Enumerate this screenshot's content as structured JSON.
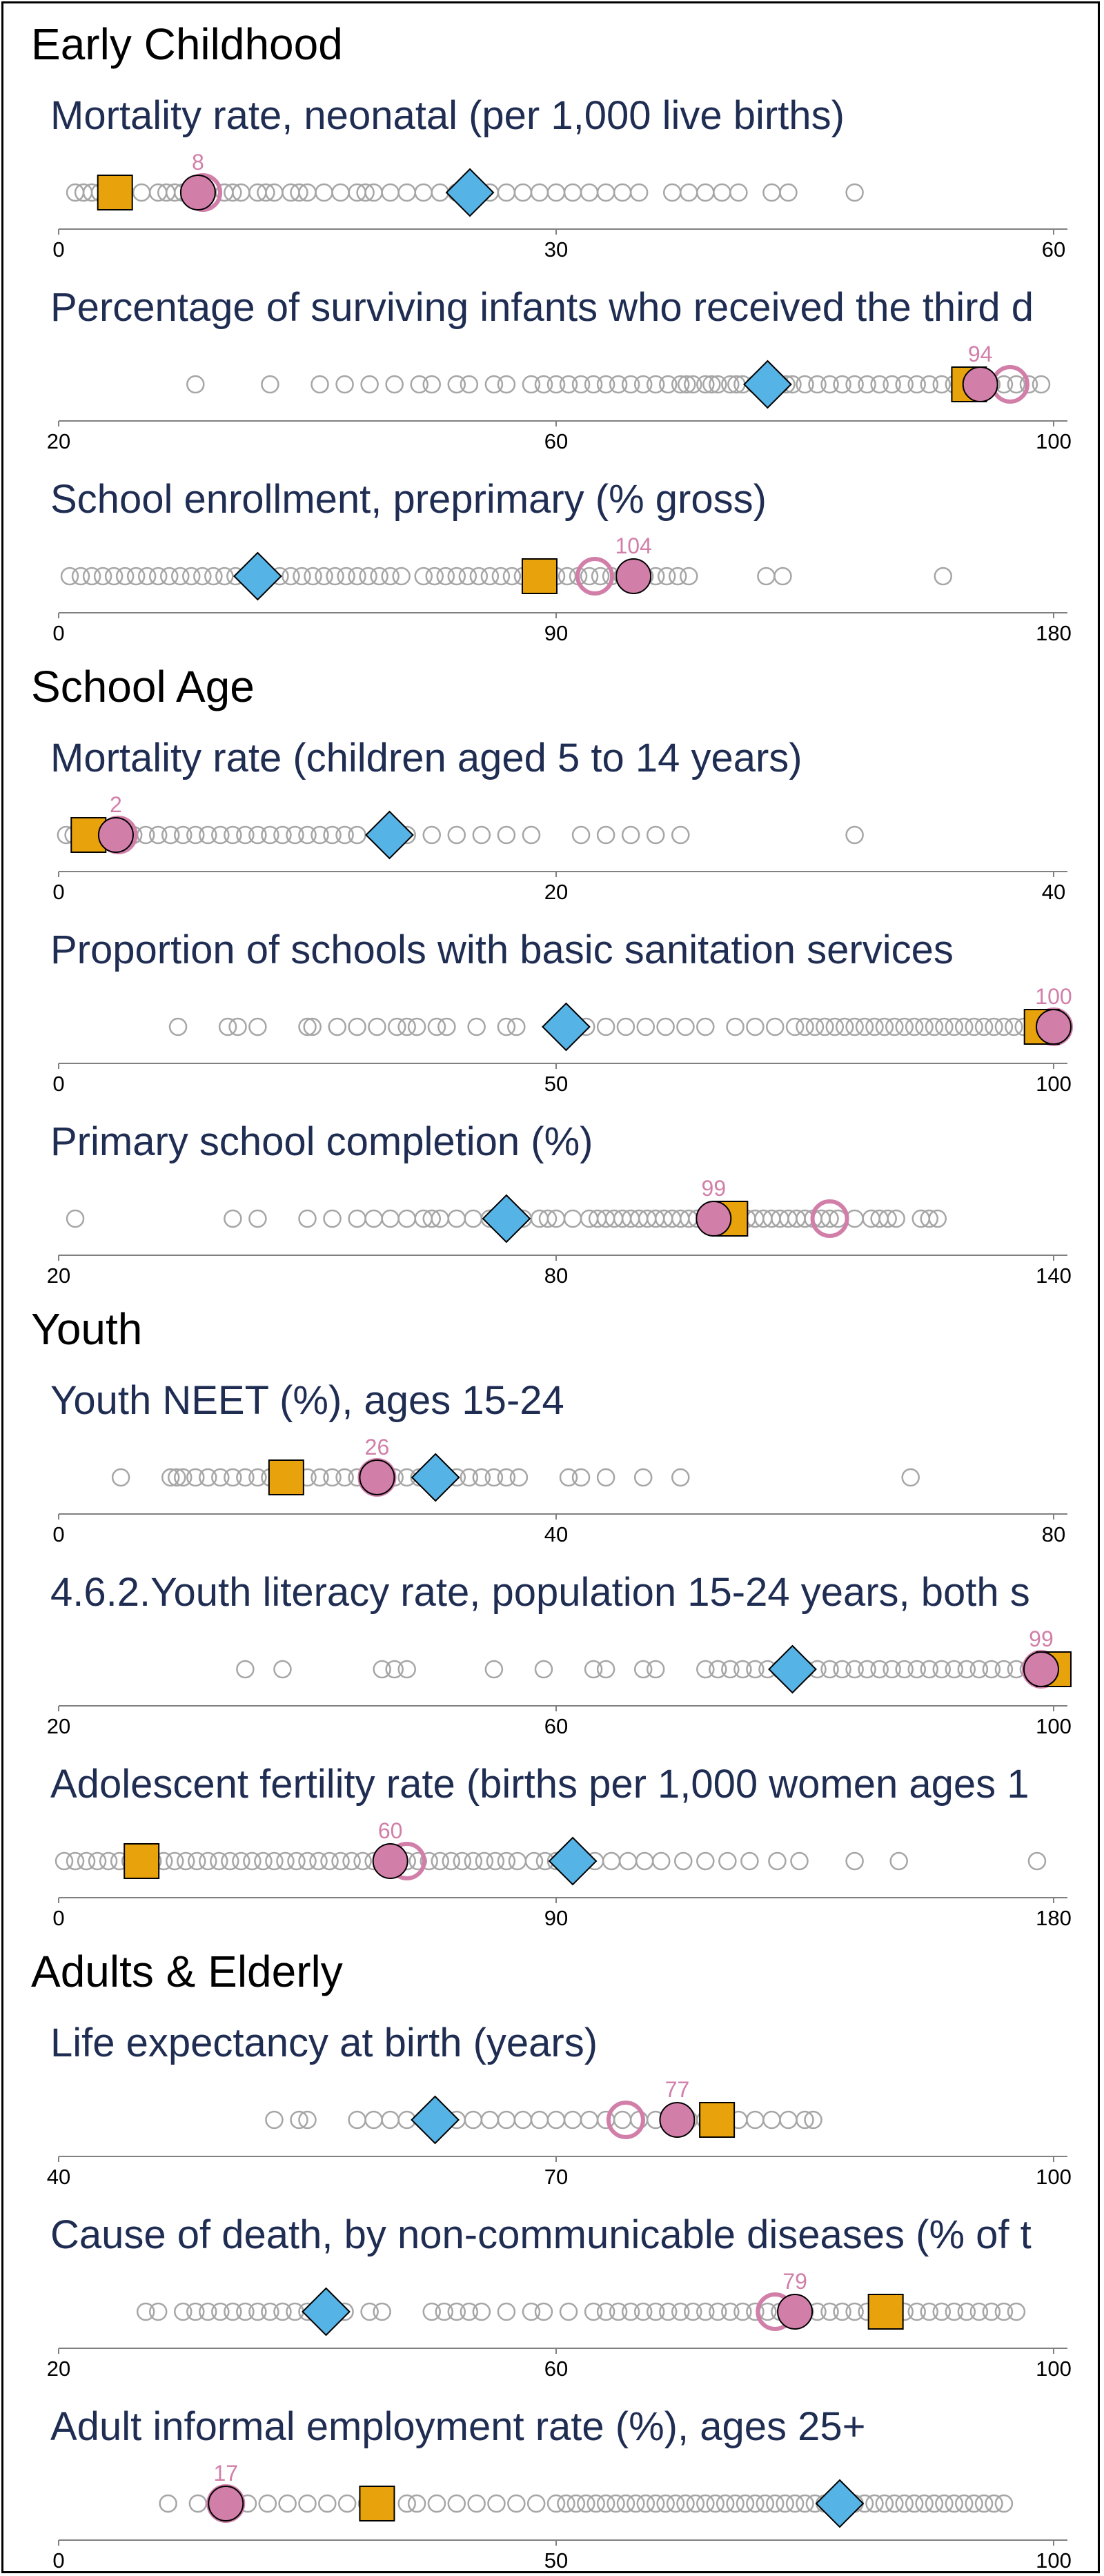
{
  "colors": {
    "dots": "#a6a6a6",
    "country": "#d17fa9",
    "region": "#e8a20c",
    "income": "#56b3e6",
    "title": "#1f2d53",
    "axis": "#808080"
  },
  "chart_data": {
    "type": "scatter",
    "sections": [
      {
        "name": "Early Childhood",
        "panels": [
          {
            "title": "Mortality rate, neonatal (per 1,000 live births)",
            "xlim": [
              0,
              60
            ],
            "ticks": [
              0,
              30,
              60
            ],
            "dots": [
              1,
              1.5,
              2,
              2.5,
              3,
              3.5,
              4,
              5,
              6,
              6.5,
              7,
              7.5,
              8,
              9,
              10,
              10.5,
              11,
              12,
              12.5,
              13,
              14,
              14.5,
              15,
              16,
              17,
              18,
              18.5,
              19,
              20,
              21,
              22,
              23,
              24,
              25,
              26,
              27,
              28,
              29,
              30,
              31,
              32,
              33,
              34,
              35,
              37,
              38,
              39,
              40,
              41,
              43,
              44,
              48
            ],
            "comparator": 8.7,
            "country": 8.4,
            "label": "8",
            "region": 3.4,
            "income": 24.8
          },
          {
            "title": "Percentage of surviving infants who received the third d",
            "xlim": [
              20,
              100
            ],
            "ticks": [
              20,
              60,
              100
            ],
            "dots": [
              31,
              37,
              41,
              43,
              45,
              47,
              49,
              50,
              52,
              53,
              55,
              56,
              58,
              59,
              60,
              61,
              62,
              63,
              64,
              65,
              66,
              67,
              68,
              69,
              70,
              70.5,
              71,
              72,
              72.5,
              73,
              74,
              74.5,
              75,
              76,
              76.5,
              77,
              78,
              78.5,
              79,
              80,
              81,
              82,
              83,
              84,
              85,
              86,
              87,
              88,
              89,
              90,
              91,
              92,
              93,
              94,
              95,
              96,
              97,
              98,
              99
            ],
            "comparator": 96.5,
            "country": 94.1,
            "label": "94",
            "region": 93.2,
            "income": 77
          },
          {
            "title": "School enrollment, preprimary (% gross)",
            "xlim": [
              0,
              180
            ],
            "ticks": [
              0,
              90,
              180
            ],
            "dots": [
              2,
              4,
              6,
              8,
              10,
              12,
              14,
              16,
              18,
              20,
              22,
              24,
              26,
              28,
              30,
              32,
              34,
              36,
              38,
              40,
              42,
              44,
              46,
              48,
              50,
              52,
              54,
              56,
              58,
              60,
              62,
              66,
              68,
              70,
              72,
              74,
              76,
              78,
              80,
              82,
              84,
              86,
              88,
              90,
              92,
              94,
              96,
              98,
              100,
              102,
              104,
              106,
              108,
              110,
              112,
              114,
              128,
              131,
              160
            ],
            "comparator": 97,
            "country": 104,
            "label": "104",
            "region": 87,
            "income": 36
          }
        ]
      },
      {
        "name": "School Age",
        "panels": [
          {
            "title": "Mortality rate (children aged 5 to 14 years)",
            "xlim": [
              0,
              40
            ],
            "ticks": [
              0,
              20,
              40
            ],
            "dots": [
              0.3,
              0.6,
              1,
              1.3,
              1.6,
              2,
              2.3,
              2.6,
              3,
              3.5,
              4,
              4.5,
              5,
              5.5,
              6,
              6.5,
              7,
              7.5,
              8,
              8.5,
              9,
              9.5,
              10,
              10.5,
              11,
              11.5,
              12,
              13,
              14,
              15,
              16,
              17,
              18,
              19,
              21,
              22,
              23,
              24,
              25,
              32
            ],
            "comparator": 2.4,
            "country": 2.3,
            "label": "2",
            "region": 1.2,
            "income": 13.3
          },
          {
            "title": "Proportion of schools with basic sanitation services",
            "xlim": [
              0,
              100
            ],
            "ticks": [
              0,
              50,
              100
            ],
            "dots": [
              12,
              17,
              18,
              20,
              25,
              25.5,
              28,
              30,
              32,
              34,
              35,
              36,
              38,
              39,
              42,
              45,
              46,
              50,
              53,
              55,
              57,
              59,
              61,
              63,
              65,
              68,
              70,
              72,
              74,
              75,
              76,
              77,
              78,
              79,
              80,
              81,
              82,
              83,
              84,
              85,
              86,
              87,
              88,
              89,
              90,
              91,
              92,
              93,
              94,
              95,
              96,
              97,
              98,
              99
            ],
            "comparator": 100,
            "country": 100,
            "label": "100",
            "region": 98.8,
            "income": 51
          },
          {
            "title": "Primary school completion (%)",
            "xlim": [
              20,
              140
            ],
            "ticks": [
              20,
              80,
              140
            ],
            "dots": [
              22,
              41,
              44,
              50,
              53,
              56,
              58,
              60,
              62,
              64,
              65,
              66,
              68,
              70,
              72,
              74,
              76,
              78,
              79,
              80,
              82,
              84,
              85,
              86,
              87,
              88,
              89,
              90,
              91,
              92,
              93,
              94,
              95,
              96,
              97,
              98,
              99,
              100,
              101,
              102,
              103,
              104,
              105,
              106,
              107,
              108,
              109,
              110,
              111,
              112,
              113,
              114,
              116,
              118,
              119,
              120,
              121,
              124,
              125,
              126
            ],
            "comparator": 113,
            "country": 99,
            "label": "99",
            "region": 101,
            "income": 74
          }
        ]
      },
      {
        "name": "Youth",
        "panels": [
          {
            "title": "Youth NEET (%), ages 15-24",
            "xlim": [
              0,
              80
            ],
            "ticks": [
              0,
              40,
              80
            ],
            "dots": [
              5,
              9,
              9.5,
              10,
              11,
              12,
              13,
              14,
              15,
              16,
              17,
              18,
              19,
              20,
              21,
              22,
              23,
              24,
              25,
              26,
              27,
              28,
              29,
              30,
              31,
              32,
              33,
              34,
              35,
              36,
              37,
              41,
              42,
              44,
              47,
              50,
              68.5
            ],
            "comparator": 25.6,
            "country": 25.6,
            "label": "26",
            "region": 18.3,
            "income": 30.3
          },
          {
            "title": "4.6.2.Youth literacy rate, population 15-24 years, both s",
            "xlim": [
              20,
              100
            ],
            "ticks": [
              20,
              60,
              100
            ],
            "dots": [
              35,
              38,
              46,
              47,
              48,
              55,
              59,
              63,
              64,
              67,
              68,
              72,
              73,
              74,
              75,
              76,
              77,
              78,
              79,
              80,
              81,
              82,
              83,
              84,
              85,
              86,
              87,
              88,
              89,
              90,
              91,
              92,
              93,
              94,
              95,
              96,
              97,
              98,
              99
            ],
            "comparator": 99,
            "country": 99,
            "label": "99",
            "region": 100,
            "income": 79
          },
          {
            "title": "Adolescent fertility rate (births per 1,000 women ages 1",
            "xlim": [
              0,
              180
            ],
            "ticks": [
              0,
              90,
              180
            ],
            "dots": [
              1,
              3,
              5,
              7,
              9,
              11,
              13,
              15,
              17,
              19,
              21,
              23,
              25,
              27,
              29,
              31,
              33,
              35,
              37,
              39,
              41,
              43,
              45,
              47,
              49,
              51,
              53,
              55,
              57,
              59,
              61,
              63,
              65,
              67,
              69,
              71,
              73,
              75,
              77,
              79,
              81,
              83,
              86,
              88,
              90,
              93,
              95,
              97,
              100,
              103,
              106,
              109,
              113,
              117,
              121,
              125,
              130,
              134,
              144,
              152,
              177
            ],
            "comparator": 63,
            "country": 60,
            "label": "60",
            "region": 15,
            "income": 93
          }
        ]
      },
      {
        "name": "Adults & Elderly",
        "panels": [
          {
            "title": "Life expectancy at birth (years)",
            "xlim": [
              40,
              100
            ],
            "ticks": [
              40,
              70,
              100
            ],
            "dots": [
              53,
              54.5,
              55,
              58,
              59,
              60,
              61,
              62,
              63,
              64,
              65,
              66,
              67,
              68,
              69,
              70,
              71,
              72,
              73,
              74,
              75,
              76,
              77,
              78,
              79,
              80,
              81,
              82,
              83,
              84,
              85,
              85.5
            ],
            "comparator": 74.2,
            "country": 77.3,
            "label": "77",
            "region": 79.7,
            "income": 62.7
          },
          {
            "title": "Cause of death, by non-communicable diseases (% of t",
            "xlim": [
              20,
              100
            ],
            "ticks": [
              20,
              60,
              100
            ],
            "dots": [
              27,
              28,
              30,
              31,
              32,
              33,
              34,
              35,
              36,
              37,
              38,
              39,
              40,
              41,
              42,
              43,
              45,
              46,
              50,
              51,
              52,
              53,
              54,
              56,
              58,
              59,
              61,
              63,
              64,
              65,
              66,
              67,
              68,
              69,
              70,
              71,
              72,
              73,
              74,
              75,
              76,
              77,
              78,
              79,
              80,
              81,
              82,
              83,
              84,
              85,
              86,
              87,
              88,
              89,
              90,
              91,
              92,
              93,
              94,
              95,
              96,
              97
            ],
            "comparator": 77.6,
            "country": 79.2,
            "label": "79",
            "region": 86.5,
            "income": 41.5
          },
          {
            "title": "Adult informal employment rate (%), ages 25+",
            "xlim": [
              0,
              100
            ],
            "ticks": [
              0,
              50,
              100
            ],
            "dots": [
              11,
              14,
              17,
              19,
              21,
              23,
              25,
              27,
              29,
              31,
              35,
              36,
              38,
              40,
              42,
              44,
              46,
              48,
              50,
              51,
              52,
              53,
              54,
              55,
              56,
              57,
              58,
              59,
              60,
              61,
              62,
              63,
              64,
              65,
              66,
              67,
              68,
              69,
              70,
              71,
              72,
              73,
              74,
              75,
              76,
              77,
              78,
              79,
              80,
              81,
              82,
              83,
              84,
              85,
              86,
              87,
              88,
              89,
              90,
              91,
              92,
              93,
              94,
              95
            ],
            "comparator": 16.8,
            "country": 16.8,
            "label": "17",
            "region": 32,
            "income": 78.5
          }
        ]
      }
    ]
  }
}
